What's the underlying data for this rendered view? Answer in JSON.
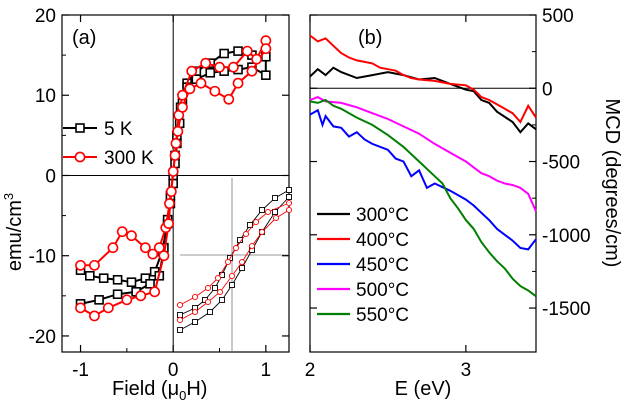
{
  "chart_data": [
    {
      "panel": "(a)",
      "type": "line",
      "xlabel_main": "Field (μ",
      "xlabel_sub": "0",
      "xlabel_end": "H)",
      "ylabel_main": "emu/cm",
      "ylabel_sup": "3",
      "xlim": [
        -1.2,
        1.25
      ],
      "ylim": [
        -22,
        20
      ],
      "xticks": [
        -1,
        0,
        1
      ],
      "xtick_labels": [
        "-1",
        "0",
        "1"
      ],
      "yticks": [
        -20,
        -10,
        0,
        10,
        20
      ],
      "ytick_labels": [
        "-20",
        "-10",
        "0",
        "10",
        "20"
      ],
      "series": [
        {
          "name": "5 K",
          "color": "#000000",
          "marker": "square",
          "points": [
            [
              -1.0,
              -11.8
            ],
            [
              -0.9,
              -12.5
            ],
            [
              -0.75,
              -12.8
            ],
            [
              -0.6,
              -13.0
            ],
            [
              -0.45,
              -13.3
            ],
            [
              -0.3,
              -12.8
            ],
            [
              -0.2,
              -12.0
            ],
            [
              -0.12,
              -9.5
            ],
            [
              -0.06,
              -6.0
            ],
            [
              -0.03,
              -3.5
            ],
            [
              0.0,
              -1.0
            ],
            [
              0.02,
              1.5
            ],
            [
              0.04,
              4.0
            ],
            [
              0.07,
              6.5
            ],
            [
              0.1,
              9.0
            ],
            [
              0.15,
              11.5
            ],
            [
              0.25,
              13.0
            ],
            [
              0.4,
              14.0
            ],
            [
              0.55,
              15.2
            ],
            [
              0.7,
              15.5
            ],
            [
              0.85,
              15.0
            ],
            [
              1.0,
              14.8
            ],
            [
              1.0,
              12.5
            ],
            [
              0.85,
              13.5
            ],
            [
              0.7,
              13.2
            ],
            [
              0.55,
              13.0
            ],
            [
              0.4,
              12.8
            ],
            [
              0.25,
              12.0
            ],
            [
              0.15,
              11.0
            ],
            [
              0.08,
              8.5
            ],
            [
              0.04,
              5.0
            ],
            [
              0.02,
              2.5
            ],
            [
              0.0,
              0.0
            ],
            [
              -0.03,
              -2.5
            ],
            [
              -0.06,
              -5.5
            ],
            [
              -0.1,
              -9.0
            ],
            [
              -0.15,
              -12.5
            ],
            [
              -0.25,
              -13.5
            ],
            [
              -0.4,
              -14.5
            ],
            [
              -0.6,
              -14.8
            ],
            [
              -0.8,
              -15.5
            ],
            [
              -1.0,
              -16.0
            ]
          ]
        },
        {
          "name": "300 K",
          "color": "#ff0000",
          "marker": "circle",
          "points": [
            [
              -1.0,
              -11.2
            ],
            [
              -0.85,
              -11.2
            ],
            [
              -0.65,
              -9.0
            ],
            [
              -0.55,
              -7.0
            ],
            [
              -0.45,
              -7.5
            ],
            [
              -0.3,
              -9.0
            ],
            [
              -0.22,
              -9.8
            ],
            [
              -0.15,
              -9.0
            ],
            [
              -0.08,
              -6.5
            ],
            [
              -0.04,
              -3.5
            ],
            [
              0.0,
              0.5
            ],
            [
              0.03,
              4.0
            ],
            [
              0.06,
              7.5
            ],
            [
              0.1,
              10.0
            ],
            [
              0.2,
              13.0
            ],
            [
              0.35,
              14.0
            ],
            [
              0.5,
              13.5
            ],
            [
              0.65,
              13.5
            ],
            [
              0.8,
              15.5
            ],
            [
              0.9,
              14.5
            ],
            [
              1.0,
              16.8
            ],
            [
              1.0,
              15.8
            ],
            [
              0.85,
              13.0
            ],
            [
              0.7,
              11.5
            ],
            [
              0.6,
              9.5
            ],
            [
              0.45,
              10.5
            ],
            [
              0.3,
              11.5
            ],
            [
              0.18,
              10.8
            ],
            [
              0.1,
              8.5
            ],
            [
              0.05,
              5.5
            ],
            [
              0.02,
              2.5
            ],
            [
              -0.02,
              -2.0
            ],
            [
              -0.05,
              -6.0
            ],
            [
              -0.1,
              -10.0
            ],
            [
              -0.2,
              -14.5
            ],
            [
              -0.35,
              -15.0
            ],
            [
              -0.5,
              -15.5
            ],
            [
              -0.7,
              -16.5
            ],
            [
              -0.85,
              -17.5
            ],
            [
              -1.0,
              -16.5
            ]
          ]
        }
      ]
    },
    {
      "panel": "(b)",
      "type": "line",
      "xlabel": "E (eV)",
      "ylabel": "MCD (degrees/cm)",
      "xlim": [
        2.0,
        3.45
      ],
      "ylim": [
        -1800,
        500
      ],
      "xticks": [
        2,
        3
      ],
      "xtick_labels": [
        "2",
        "3"
      ],
      "yticks": [
        500,
        0,
        -500,
        -1000,
        -1500
      ],
      "ytick_labels": [
        "500",
        "0",
        "-500",
        "-1000",
        "-1500"
      ],
      "series": [
        {
          "name": "300°C",
          "color": "#000000",
          "points": [
            [
              2.0,
              80
            ],
            [
              2.05,
              130
            ],
            [
              2.1,
              90
            ],
            [
              2.15,
              140
            ],
            [
              2.2,
              110
            ],
            [
              2.3,
              70
            ],
            [
              2.4,
              90
            ],
            [
              2.5,
              110
            ],
            [
              2.6,
              90
            ],
            [
              2.7,
              60
            ],
            [
              2.8,
              70
            ],
            [
              2.9,
              30
            ],
            [
              3.0,
              -10
            ],
            [
              3.05,
              -20
            ],
            [
              3.1,
              -80
            ],
            [
              3.15,
              -100
            ],
            [
              3.2,
              -160
            ],
            [
              3.3,
              -230
            ],
            [
              3.35,
              -300
            ],
            [
              3.4,
              -240
            ],
            [
              3.45,
              -280
            ]
          ]
        },
        {
          "name": "400°C",
          "color": "#ff0000",
          "points": [
            [
              2.0,
              360
            ],
            [
              2.05,
              320
            ],
            [
              2.1,
              340
            ],
            [
              2.15,
              290
            ],
            [
              2.2,
              240
            ],
            [
              2.25,
              210
            ],
            [
              2.3,
              190
            ],
            [
              2.35,
              180
            ],
            [
              2.4,
              170
            ],
            [
              2.45,
              140
            ],
            [
              2.5,
              130
            ],
            [
              2.55,
              120
            ],
            [
              2.6,
              90
            ],
            [
              2.65,
              70
            ],
            [
              2.7,
              60
            ],
            [
              2.8,
              50
            ],
            [
              2.9,
              30
            ],
            [
              3.0,
              20
            ],
            [
              3.05,
              -10
            ],
            [
              3.1,
              -60
            ],
            [
              3.15,
              -80
            ],
            [
              3.2,
              -110
            ],
            [
              3.25,
              -140
            ],
            [
              3.3,
              -170
            ],
            [
              3.35,
              -230
            ],
            [
              3.4,
              -120
            ],
            [
              3.45,
              -200
            ]
          ]
        },
        {
          "name": "450°C",
          "color": "#0000ff",
          "points": [
            [
              2.0,
              -180
            ],
            [
              2.05,
              -150
            ],
            [
              2.08,
              -250
            ],
            [
              2.1,
              -190
            ],
            [
              2.15,
              -260
            ],
            [
              2.2,
              -270
            ],
            [
              2.25,
              -330
            ],
            [
              2.3,
              -300
            ],
            [
              2.35,
              -350
            ],
            [
              2.4,
              -380
            ],
            [
              2.5,
              -420
            ],
            [
              2.55,
              -480
            ],
            [
              2.6,
              -500
            ],
            [
              2.65,
              -600
            ],
            [
              2.7,
              -560
            ],
            [
              2.75,
              -680
            ],
            [
              2.8,
              -650
            ],
            [
              2.9,
              -700
            ],
            [
              3.0,
              -760
            ],
            [
              3.05,
              -800
            ],
            [
              3.1,
              -850
            ],
            [
              3.15,
              -900
            ],
            [
              3.2,
              -960
            ],
            [
              3.25,
              -1000
            ],
            [
              3.3,
              -1040
            ],
            [
              3.35,
              -1090
            ],
            [
              3.4,
              -1100
            ],
            [
              3.45,
              -1030
            ]
          ]
        },
        {
          "name": "500°C",
          "color": "#ff00ff",
          "points": [
            [
              2.0,
              -80
            ],
            [
              2.05,
              -60
            ],
            [
              2.1,
              -90
            ],
            [
              2.2,
              -100
            ],
            [
              2.3,
              -130
            ],
            [
              2.4,
              -170
            ],
            [
              2.5,
              -210
            ],
            [
              2.6,
              -260
            ],
            [
              2.7,
              -310
            ],
            [
              2.8,
              -380
            ],
            [
              2.9,
              -440
            ],
            [
              3.0,
              -500
            ],
            [
              3.05,
              -540
            ],
            [
              3.1,
              -580
            ],
            [
              3.15,
              -600
            ],
            [
              3.2,
              -630
            ],
            [
              3.25,
              -650
            ],
            [
              3.3,
              -660
            ],
            [
              3.35,
              -680
            ],
            [
              3.4,
              -720
            ],
            [
              3.45,
              -840
            ]
          ]
        },
        {
          "name": "550°C",
          "color": "#008000",
          "points": [
            [
              2.0,
              -90
            ],
            [
              2.05,
              -100
            ],
            [
              2.1,
              -80
            ],
            [
              2.15,
              -120
            ],
            [
              2.2,
              -140
            ],
            [
              2.3,
              -200
            ],
            [
              2.4,
              -250
            ],
            [
              2.5,
              -320
            ],
            [
              2.6,
              -400
            ],
            [
              2.7,
              -500
            ],
            [
              2.8,
              -600
            ],
            [
              2.85,
              -650
            ],
            [
              2.9,
              -750
            ],
            [
              2.95,
              -820
            ],
            [
              3.0,
              -900
            ],
            [
              3.05,
              -960
            ],
            [
              3.1,
              -1050
            ],
            [
              3.15,
              -1120
            ],
            [
              3.2,
              -1180
            ],
            [
              3.25,
              -1230
            ],
            [
              3.3,
              -1300
            ],
            [
              3.35,
              -1350
            ],
            [
              3.4,
              -1380
            ],
            [
              3.45,
              -1420
            ]
          ]
        }
      ]
    }
  ]
}
